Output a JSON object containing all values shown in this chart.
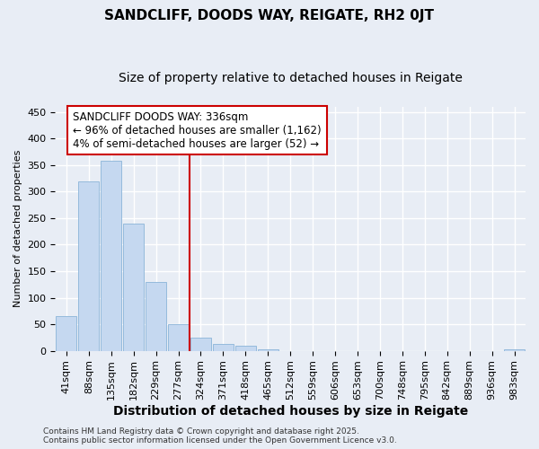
{
  "title": "SANDCLIFF, DOODS WAY, REIGATE, RH2 0JT",
  "subtitle": "Size of property relative to detached houses in Reigate",
  "xlabel": "Distribution of detached houses by size in Reigate",
  "ylabel": "Number of detached properties",
  "footnote1": "Contains HM Land Registry data © Crown copyright and database right 2025.",
  "footnote2": "Contains public sector information licensed under the Open Government Licence v3.0.",
  "categories": [
    "41sqm",
    "88sqm",
    "135sqm",
    "182sqm",
    "229sqm",
    "277sqm",
    "324sqm",
    "371sqm",
    "418sqm",
    "465sqm",
    "512sqm",
    "559sqm",
    "606sqm",
    "653sqm",
    "700sqm",
    "748sqm",
    "795sqm",
    "842sqm",
    "889sqm",
    "936sqm",
    "983sqm"
  ],
  "values": [
    65,
    320,
    358,
    240,
    130,
    50,
    25,
    13,
    9,
    3,
    0,
    0,
    0,
    0,
    0,
    0,
    0,
    0,
    0,
    0,
    2
  ],
  "bar_color": "#c5d8f0",
  "bar_edge_color": "#8ab4d8",
  "background_color": "#e8edf5",
  "grid_color": "#ffffff",
  "vline_x": 6,
  "vline_color": "#cc0000",
  "annotation_line1": "SANDCLIFF DOODS WAY: 336sqm",
  "annotation_line2": "← 96% of detached houses are smaller (1,162)",
  "annotation_line3": "4% of semi-detached houses are larger (52) →",
  "annotation_box_color": "#ffffff",
  "annotation_box_edge_color": "#cc0000",
  "ylim": [
    0,
    460
  ],
  "yticks": [
    0,
    50,
    100,
    150,
    200,
    250,
    300,
    350,
    400,
    450
  ],
  "title_fontsize": 11,
  "subtitle_fontsize": 10,
  "xlabel_fontsize": 10,
  "ylabel_fontsize": 8,
  "tick_fontsize": 8,
  "annot_fontsize": 8.5,
  "footnote_fontsize": 6.5
}
